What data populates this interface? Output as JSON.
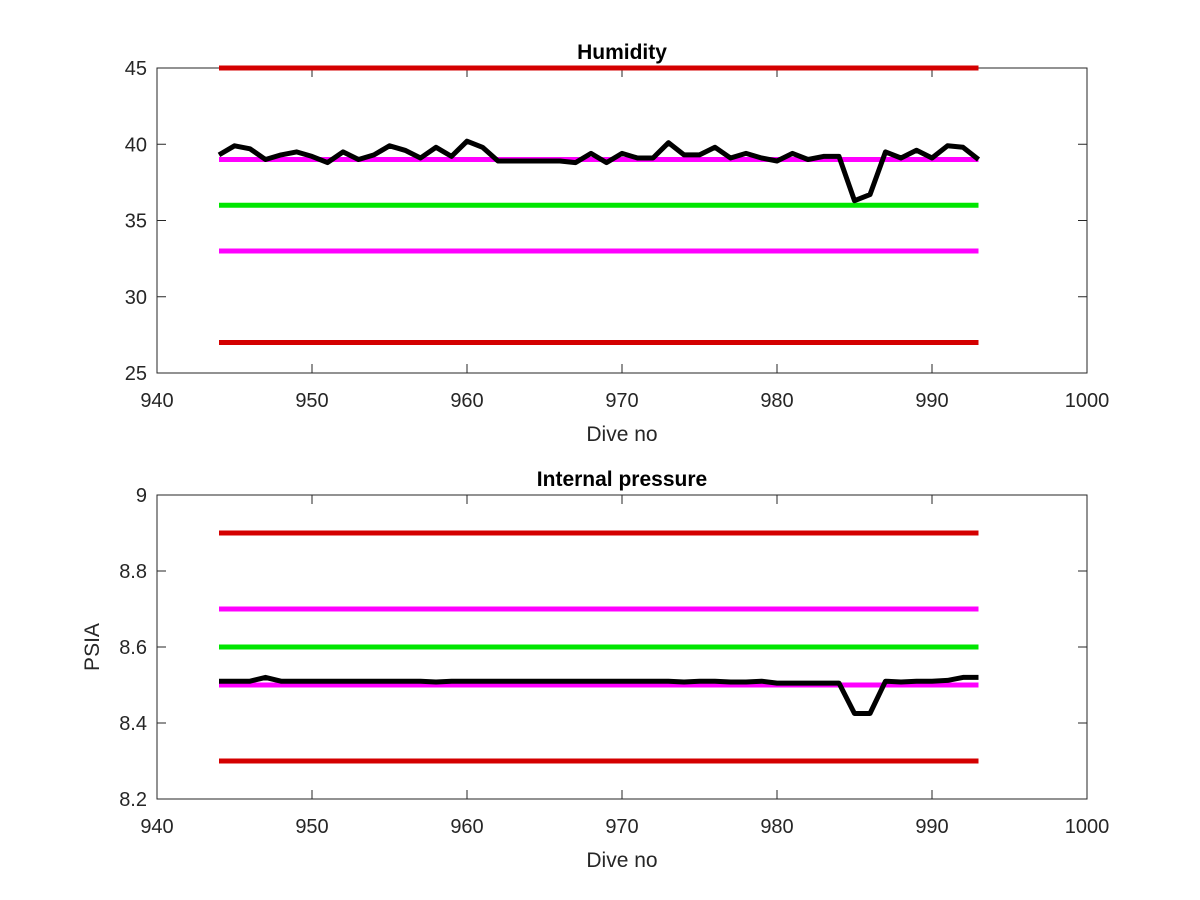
{
  "chart_data": [
    {
      "type": "line",
      "title": "Humidity",
      "xlabel": "Dive no",
      "ylabel": "",
      "xlim": [
        940,
        1000
      ],
      "ylim": [
        25,
        45
      ],
      "xticks": [
        "940",
        "950",
        "960",
        "970",
        "980",
        "990",
        "1000"
      ],
      "yticks": [
        "25",
        "30",
        "35",
        "40",
        "45"
      ],
      "grid": false,
      "series": [
        {
          "color": "#000000",
          "x": [
            944,
            945,
            946,
            947,
            948,
            949,
            950,
            951,
            952,
            953,
            954,
            955,
            956,
            957,
            958,
            959,
            960,
            961,
            962,
            963,
            964,
            965,
            966,
            967,
            968,
            969,
            970,
            971,
            972,
            973,
            974,
            975,
            976,
            977,
            978,
            979,
            980,
            981,
            982,
            983,
            984,
            985,
            986,
            987,
            988,
            989,
            990,
            991,
            992,
            993
          ],
          "y": [
            39.3,
            39.9,
            39.7,
            39.0,
            39.3,
            39.5,
            39.2,
            38.8,
            39.5,
            39.0,
            39.3,
            39.9,
            39.6,
            39.1,
            39.8,
            39.2,
            40.2,
            39.8,
            38.9,
            38.9,
            38.9,
            38.9,
            38.9,
            38.8,
            39.4,
            38.8,
            39.4,
            39.1,
            39.1,
            40.1,
            39.3,
            39.3,
            39.8,
            39.1,
            39.4,
            39.1,
            38.9,
            39.4,
            39.0,
            39.2,
            39.2,
            36.3,
            36.7,
            39.5,
            39.1,
            39.6,
            39.1,
            39.9,
            39.8,
            39.0
          ]
        },
        {
          "color": "#d40000",
          "x": [
            944,
            993
          ],
          "y": [
            45,
            45
          ]
        },
        {
          "color": "#ff00ff",
          "x": [
            944,
            993
          ],
          "y": [
            39,
            39
          ]
        },
        {
          "color": "#00e600",
          "x": [
            944,
            993
          ],
          "y": [
            36,
            36
          ]
        },
        {
          "color": "#ff00ff",
          "x": [
            944,
            993
          ],
          "y": [
            33,
            33
          ]
        },
        {
          "color": "#d40000",
          "x": [
            944,
            993
          ],
          "y": [
            27,
            27
          ]
        }
      ]
    },
    {
      "type": "line",
      "title": "Internal pressure",
      "xlabel": "Dive no",
      "ylabel": "PSIA",
      "xlim": [
        940,
        1000
      ],
      "ylim": [
        8.2,
        9
      ],
      "xticks": [
        "940",
        "950",
        "960",
        "970",
        "980",
        "990",
        "1000"
      ],
      "yticks": [
        "8.2",
        "8.4",
        "8.6",
        "8.8",
        "9"
      ],
      "grid": false,
      "series": [
        {
          "color": "#000000",
          "x": [
            944,
            945,
            946,
            947,
            948,
            949,
            950,
            951,
            952,
            953,
            954,
            955,
            956,
            957,
            958,
            959,
            960,
            961,
            962,
            963,
            964,
            965,
            966,
            967,
            968,
            969,
            970,
            971,
            972,
            973,
            974,
            975,
            976,
            977,
            978,
            979,
            980,
            981,
            982,
            983,
            984,
            985,
            986,
            987,
            988,
            989,
            990,
            991,
            992,
            993
          ],
          "y": [
            8.51,
            8.51,
            8.51,
            8.52,
            8.51,
            8.51,
            8.51,
            8.51,
            8.51,
            8.51,
            8.51,
            8.51,
            8.51,
            8.51,
            8.508,
            8.51,
            8.51,
            8.51,
            8.51,
            8.51,
            8.51,
            8.51,
            8.51,
            8.51,
            8.51,
            8.51,
            8.51,
            8.51,
            8.51,
            8.51,
            8.508,
            8.51,
            8.51,
            8.508,
            8.508,
            8.51,
            8.505,
            8.505,
            8.505,
            8.505,
            8.505,
            8.425,
            8.425,
            8.51,
            8.508,
            8.51,
            8.51,
            8.512,
            8.52,
            8.52
          ]
        },
        {
          "color": "#d40000",
          "x": [
            944,
            993
          ],
          "y": [
            8.9,
            8.9
          ]
        },
        {
          "color": "#ff00ff",
          "x": [
            944,
            993
          ],
          "y": [
            8.7,
            8.7
          ]
        },
        {
          "color": "#00e600",
          "x": [
            944,
            993
          ],
          "y": [
            8.6,
            8.6
          ]
        },
        {
          "color": "#ff00ff",
          "x": [
            944,
            993
          ],
          "y": [
            8.5,
            8.5
          ]
        },
        {
          "color": "#d40000",
          "x": [
            944,
            993
          ],
          "y": [
            8.3,
            8.3
          ]
        }
      ]
    }
  ]
}
